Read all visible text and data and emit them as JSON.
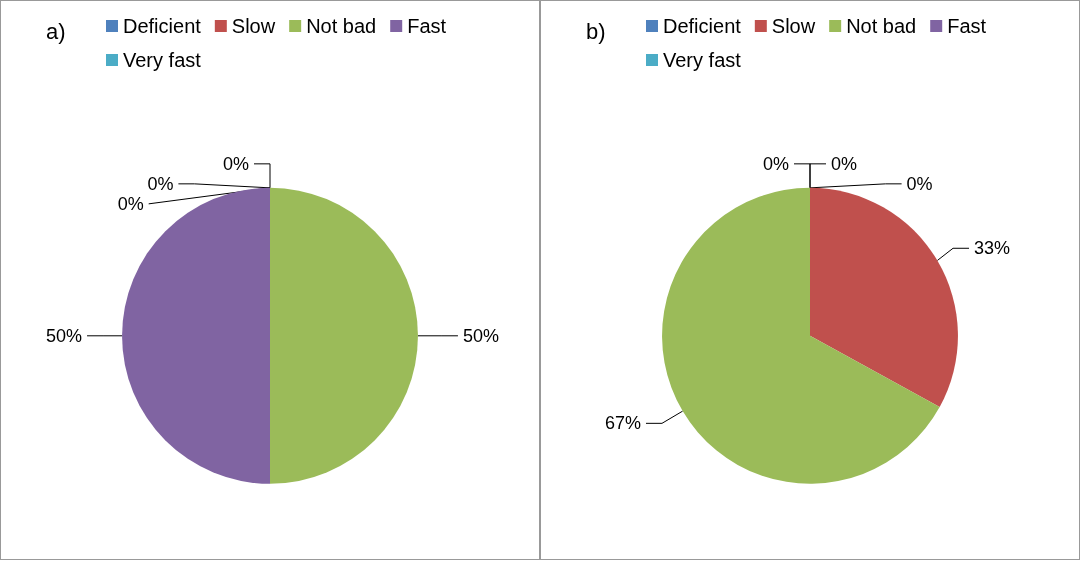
{
  "chart_data": [
    {
      "type": "pie",
      "title": "a)",
      "categories": [
        "Deficient",
        "Slow",
        "Not bad",
        "Fast",
        "Very fast"
      ],
      "values": [
        0,
        0,
        50,
        50,
        0
      ],
      "colors": [
        "#4f81bd",
        "#c0504d",
        "#9bbb59",
        "#8064a2",
        "#4bacc6"
      ],
      "value_labels": [
        "0%",
        "0%",
        "50%",
        "50%",
        "0%"
      ],
      "legend": "top"
    },
    {
      "type": "pie",
      "title": "b)",
      "categories": [
        "Deficient",
        "Slow",
        "Not bad",
        "Fast",
        "Very fast"
      ],
      "values": [
        0,
        33,
        67,
        0,
        0
      ],
      "colors": [
        "#4f81bd",
        "#c0504d",
        "#9bbb59",
        "#8064a2",
        "#4bacc6"
      ],
      "value_labels": [
        "0%",
        "33%",
        "67%",
        "0%",
        "0%"
      ],
      "legend": "top"
    }
  ]
}
